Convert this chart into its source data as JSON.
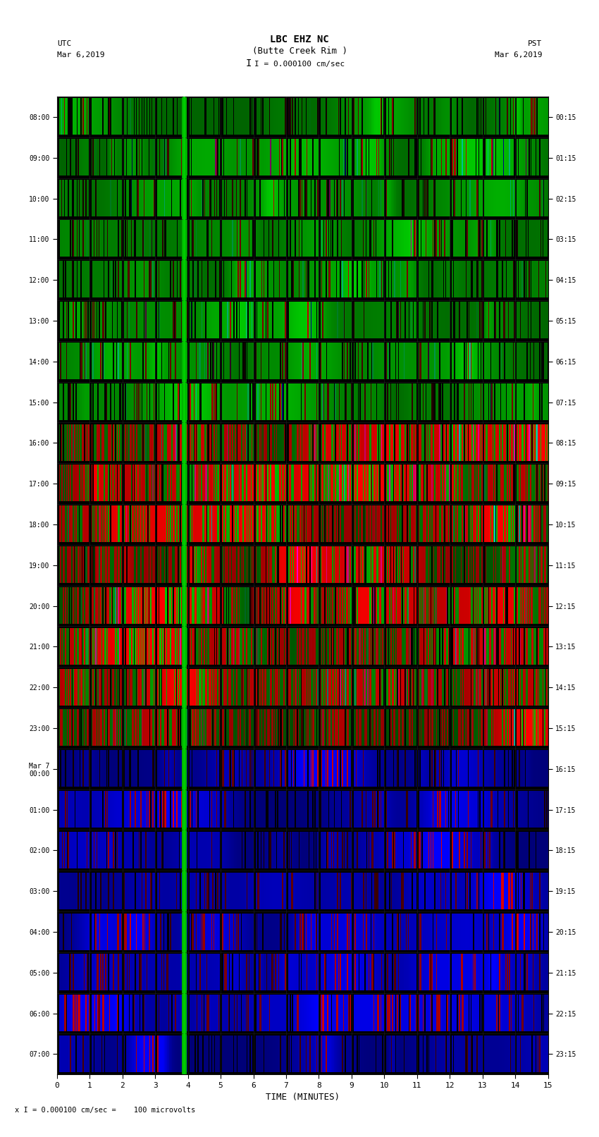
{
  "title_line1": "LBC EHZ NC",
  "title_line2": "(Butte Creek Rim )",
  "title_line3": "I = 0.000100 cm/sec",
  "utc_label": "UTC",
  "utc_date": "Mar 6,2019",
  "pst_label": "PST",
  "pst_date": "Mar 6,2019",
  "xlabel": "TIME (MINUTES)",
  "bottom_label": "x I = 0.000100 cm/sec =    100 microvolts",
  "left_times_utc": [
    "08:00",
    "09:00",
    "10:00",
    "11:00",
    "12:00",
    "13:00",
    "14:00",
    "15:00",
    "16:00",
    "17:00",
    "18:00",
    "19:00",
    "20:00",
    "21:00",
    "22:00",
    "23:00",
    "Mar 7\n00:00",
    "01:00",
    "02:00",
    "03:00",
    "04:00",
    "05:00",
    "06:00",
    "07:00"
  ],
  "right_times_pst": [
    "00:15",
    "01:15",
    "02:15",
    "03:15",
    "04:15",
    "05:15",
    "06:15",
    "07:15",
    "08:15",
    "09:15",
    "10:15",
    "11:15",
    "12:15",
    "13:15",
    "14:15",
    "15:15",
    "16:15",
    "17:15",
    "18:15",
    "19:15",
    "20:15",
    "21:15",
    "22:15",
    "23:15"
  ],
  "xticks": [
    0,
    1,
    2,
    3,
    4,
    5,
    6,
    7,
    8,
    9,
    10,
    11,
    12,
    13,
    14,
    15
  ],
  "xlim": [
    0,
    15
  ],
  "n_rows": 24,
  "fig_bg": "#ffffff",
  "green_line_x": 3.88
}
